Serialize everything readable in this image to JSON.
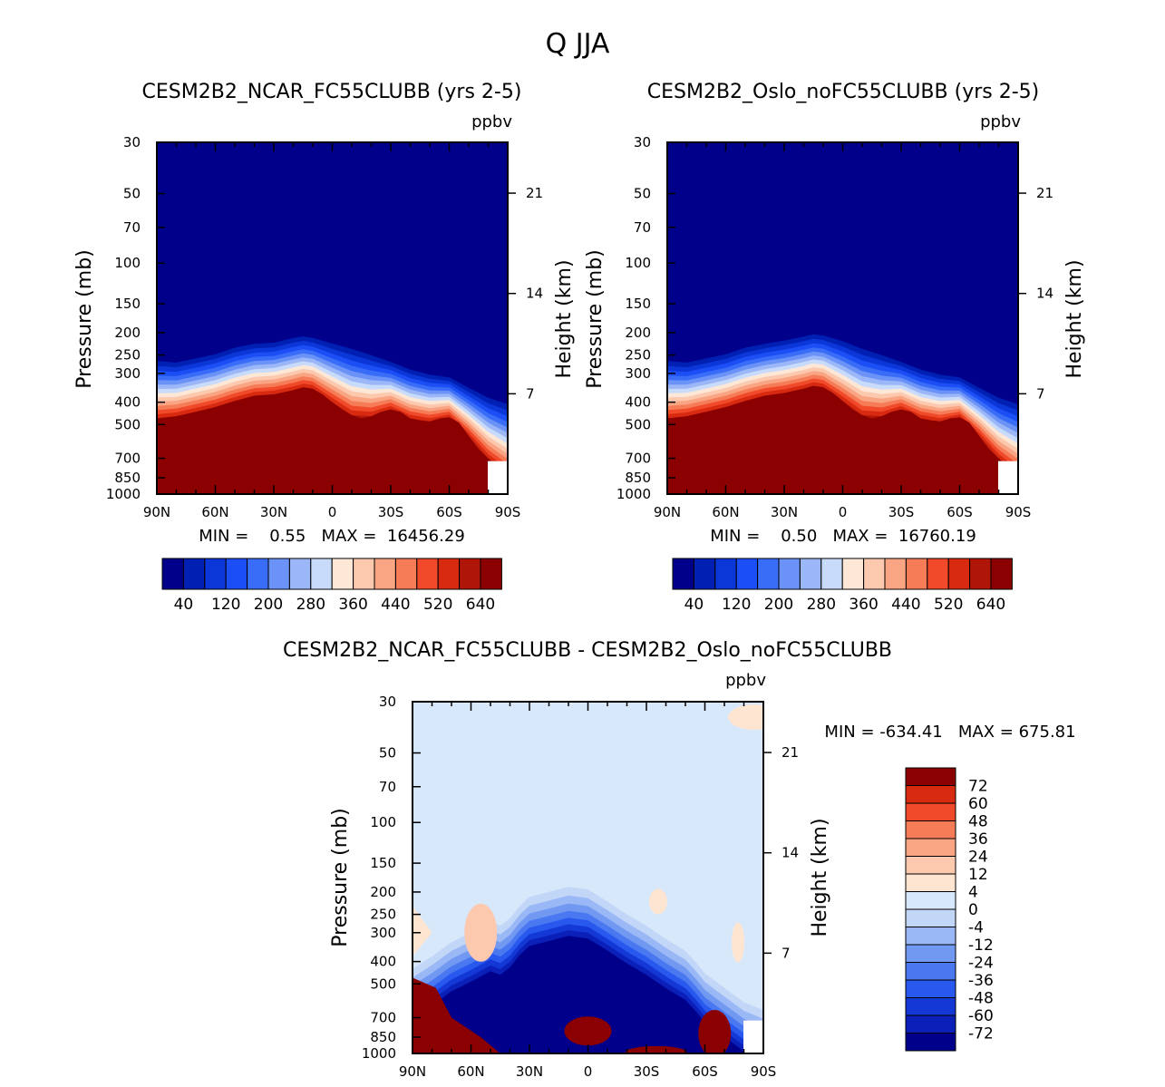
{
  "figure": {
    "title": "Q JJA",
    "colors": {
      "abs_scale": [
        "#00008b",
        "#0020b4",
        "#0b36d8",
        "#1b4ef4",
        "#3a6df7",
        "#6a92f7",
        "#9bb7f8",
        "#c8dbfa",
        "#fde7d6",
        "#fcc8ae",
        "#f9a482",
        "#f67c57",
        "#f04a2a",
        "#d82a10",
        "#b01608",
        "#8b0000"
      ],
      "diff_scale": [
        "#00008b",
        "#0a20b8",
        "#1438d6",
        "#2858ee",
        "#4a78f0",
        "#7299f2",
        "#9ab8f5",
        "#c2d6f8",
        "#d8e8fb",
        "#fde5d2",
        "#fcc8ae",
        "#f9a482",
        "#f67c57",
        "#f04a2a",
        "#d82a10",
        "#8b0000"
      ]
    }
  },
  "chart_data": [
    {
      "type": "heatmap",
      "title": "CESM2B2_NCAR_FC55CLUBB (yrs 2-5)",
      "units": "ppbv",
      "ylabel": "Pressure (mb)",
      "ylabel_right": "Height (km)",
      "y_ticks": [
        "30",
        "50",
        "70",
        "100",
        "150",
        "200",
        "250",
        "300",
        "400",
        "500",
        "700",
        "850",
        "1000"
      ],
      "y_right_ticks": [
        "21",
        "14",
        "7"
      ],
      "x_ticks": [
        "90N",
        "60N",
        "30N",
        "0",
        "30S",
        "60S",
        "90S"
      ],
      "ylim": [
        1000,
        30
      ],
      "xlim": [
        90,
        -90
      ],
      "stats_label": "MIN =    0.55   MAX =  16456.29",
      "min": 0.55,
      "max": 16456.29,
      "colorbar_labels": [
        "40",
        "120",
        "200",
        "280",
        "360",
        "440",
        "520",
        "640"
      ],
      "boundary_mb": [
        [
          90,
          250
        ],
        [
          80,
          255
        ],
        [
          70,
          245
        ],
        [
          60,
          235
        ],
        [
          50,
          220
        ],
        [
          40,
          212
        ],
        [
          30,
          210
        ],
        [
          20,
          200
        ],
        [
          15,
          197
        ],
        [
          10,
          200
        ],
        [
          0,
          210
        ],
        [
          -10,
          220
        ],
        [
          -20,
          235
        ],
        [
          -30,
          255
        ],
        [
          -40,
          275
        ],
        [
          -50,
          290
        ],
        [
          -60,
          300
        ],
        [
          -70,
          330
        ],
        [
          -80,
          360
        ],
        [
          -90,
          380
        ]
      ],
      "moist_top_mb": [
        [
          90,
          470
        ],
        [
          80,
          460
        ],
        [
          70,
          440
        ],
        [
          60,
          420
        ],
        [
          50,
          395
        ],
        [
          40,
          375
        ],
        [
          30,
          370
        ],
        [
          20,
          355
        ],
        [
          15,
          345
        ],
        [
          10,
          350
        ],
        [
          5,
          370
        ],
        [
          0,
          400
        ],
        [
          -5,
          430
        ],
        [
          -10,
          455
        ],
        [
          -15,
          470
        ],
        [
          -20,
          460
        ],
        [
          -25,
          440
        ],
        [
          -30,
          430
        ],
        [
          -35,
          440
        ],
        [
          -40,
          470
        ],
        [
          -45,
          480
        ],
        [
          -50,
          485
        ],
        [
          -55,
          470
        ],
        [
          -60,
          465
        ],
        [
          -65,
          490
        ],
        [
          -70,
          560
        ],
        [
          -75,
          640
        ],
        [
          -80,
          700
        ],
        [
          -85,
          760
        ],
        [
          -90,
          820
        ]
      ]
    },
    {
      "type": "heatmap",
      "title": "CESM2B2_Oslo_noFC55CLUBB (yrs 2-5)",
      "units": "ppbv",
      "ylabel": "Pressure (mb)",
      "ylabel_right": "Height (km)",
      "y_ticks": [
        "30",
        "50",
        "70",
        "100",
        "150",
        "200",
        "250",
        "300",
        "400",
        "500",
        "700",
        "850",
        "1000"
      ],
      "y_right_ticks": [
        "21",
        "14",
        "7"
      ],
      "x_ticks": [
        "90N",
        "60N",
        "30N",
        "0",
        "30S",
        "60S",
        "90S"
      ],
      "ylim": [
        1000,
        30
      ],
      "xlim": [
        90,
        -90
      ],
      "stats_label": "MIN =    0.50   MAX =  16760.19",
      "min": 0.5,
      "max": 16760.19,
      "colorbar_labels": [
        "40",
        "120",
        "200",
        "280",
        "360",
        "440",
        "520",
        "640"
      ],
      "boundary_mb": [
        [
          90,
          250
        ],
        [
          80,
          255
        ],
        [
          70,
          245
        ],
        [
          60,
          235
        ],
        [
          50,
          220
        ],
        [
          40,
          212
        ],
        [
          30,
          205
        ],
        [
          20,
          197
        ],
        [
          15,
          193
        ],
        [
          10,
          195
        ],
        [
          0,
          205
        ],
        [
          -10,
          220
        ],
        [
          -20,
          235
        ],
        [
          -30,
          255
        ],
        [
          -40,
          275
        ],
        [
          -50,
          290
        ],
        [
          -60,
          300
        ],
        [
          -70,
          330
        ],
        [
          -80,
          360
        ],
        [
          -90,
          380
        ]
      ],
      "moist_top_mb": [
        [
          90,
          470
        ],
        [
          80,
          460
        ],
        [
          70,
          440
        ],
        [
          60,
          420
        ],
        [
          50,
          395
        ],
        [
          40,
          375
        ],
        [
          30,
          365
        ],
        [
          20,
          350
        ],
        [
          15,
          340
        ],
        [
          10,
          345
        ],
        [
          5,
          365
        ],
        [
          0,
          395
        ],
        [
          -5,
          430
        ],
        [
          -10,
          455
        ],
        [
          -15,
          470
        ],
        [
          -20,
          460
        ],
        [
          -25,
          440
        ],
        [
          -30,
          430
        ],
        [
          -35,
          440
        ],
        [
          -40,
          470
        ],
        [
          -45,
          480
        ],
        [
          -50,
          485
        ],
        [
          -55,
          470
        ],
        [
          -60,
          465
        ],
        [
          -65,
          490
        ],
        [
          -70,
          560
        ],
        [
          -75,
          640
        ],
        [
          -80,
          700
        ],
        [
          -85,
          760
        ],
        [
          -90,
          820
        ]
      ]
    },
    {
      "type": "heatmap",
      "title": "CESM2B2_NCAR_FC55CLUBB - CESM2B2_Oslo_noFC55CLUBB",
      "units": "ppbv",
      "ylabel": "Pressure (mb)",
      "ylabel_right": "Height (km)",
      "y_ticks": [
        "30",
        "50",
        "70",
        "100",
        "150",
        "200",
        "250",
        "300",
        "400",
        "500",
        "700",
        "850",
        "1000"
      ],
      "y_right_ticks": [
        "21",
        "14",
        "7"
      ],
      "x_ticks": [
        "90N",
        "60N",
        "30N",
        "0",
        "30S",
        "60S",
        "90S"
      ],
      "ylim": [
        1000,
        30
      ],
      "xlim": [
        90,
        -90
      ],
      "stats_label": "MIN = -634.41   MAX = 675.81",
      "min": -634.41,
      "max": 675.81,
      "colorbar_labels": [
        "72",
        "60",
        "48",
        "36",
        "24",
        "12",
        "4",
        "0",
        "-4",
        "-12",
        "-24",
        "-36",
        "-48",
        "-60",
        "-72"
      ],
      "neg_region_top_mb": [
        [
          90,
          430
        ],
        [
          80,
          380
        ],
        [
          70,
          330
        ],
        [
          60,
          300
        ],
        [
          50,
          270
        ],
        [
          45,
          280
        ],
        [
          40,
          260
        ],
        [
          35,
          230
        ],
        [
          30,
          210
        ],
        [
          20,
          200
        ],
        [
          10,
          190
        ],
        [
          0,
          195
        ],
        [
          -10,
          220
        ],
        [
          -20,
          250
        ],
        [
          -30,
          280
        ],
        [
          -40,
          320
        ],
        [
          -50,
          360
        ],
        [
          -55,
          400
        ],
        [
          -60,
          450
        ],
        [
          -70,
          520
        ],
        [
          -80,
          600
        ],
        [
          -90,
          650
        ]
      ]
    }
  ]
}
